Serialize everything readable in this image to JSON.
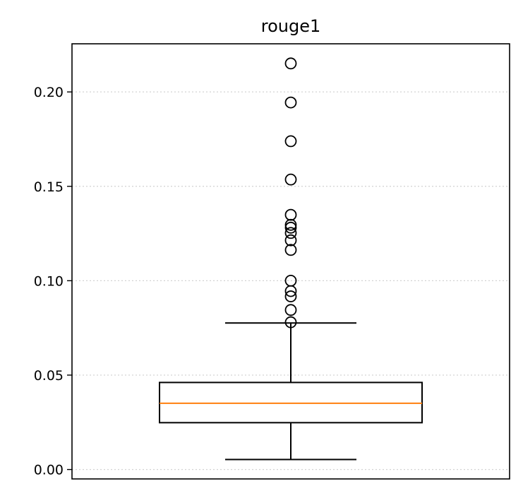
{
  "chart_data": {
    "type": "box",
    "title": "rouge1",
    "xlabel": "",
    "ylabel": "",
    "ylim": [
      -0.005,
      0.2255
    ],
    "yticks": [
      0.0,
      0.05,
      0.1,
      0.15,
      0.2
    ],
    "ytick_labels": [
      "0.00",
      "0.05",
      "0.10",
      "0.15",
      "0.20"
    ],
    "grid": "horizontal dotted",
    "series": [
      {
        "whisker_low": 0.0053,
        "q1": 0.0248,
        "median": 0.0351,
        "q3": 0.0461,
        "whisker_high": 0.0776,
        "outliers": [
          0.078,
          0.0845,
          0.0917,
          0.0945,
          0.1,
          0.1163,
          0.1214,
          0.1253,
          0.1281,
          0.1296,
          0.1349,
          0.1536,
          0.1739,
          0.1944,
          0.2151
        ]
      }
    ],
    "colors": {
      "box": "#000000",
      "median": "#ff7f0e",
      "grid": "#d3d3d3",
      "outlier_marker": "#000000"
    }
  }
}
